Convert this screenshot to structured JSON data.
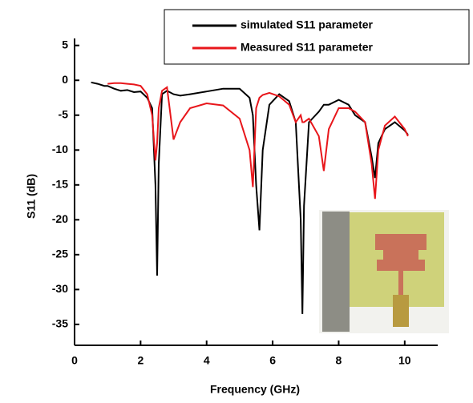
{
  "chart_data": {
    "type": "line",
    "x_label": "Frequency (GHz)",
    "y_label": "S11 (dB)",
    "x": [
      0.5,
      0.7,
      0.9,
      1.0,
      1.2,
      1.4,
      1.6,
      1.8,
      2.0,
      2.2,
      2.35,
      2.45,
      2.5,
      2.55,
      2.65,
      2.8,
      3.0,
      3.2,
      3.5,
      4.0,
      4.5,
      5.0,
      5.3,
      5.4,
      5.5,
      5.6,
      5.7,
      5.9,
      6.2,
      6.5,
      6.7,
      6.85,
      6.9,
      6.95,
      7.1,
      7.4,
      7.55,
      7.7,
      8.0,
      8.3,
      8.5,
      8.8,
      9.0,
      9.1,
      9.2,
      9.4,
      9.7,
      10.0,
      10.1
    ],
    "series": [
      {
        "name": "simulated S11 parameter",
        "color": "#000000",
        "values": [
          -0.3,
          -0.5,
          -0.8,
          -0.8,
          -1.2,
          -1.5,
          -1.4,
          -1.7,
          -1.6,
          -2.5,
          -4,
          -15,
          -28,
          -12,
          -2,
          -1.5,
          -2,
          -2.2,
          -2,
          -1.6,
          -1.2,
          -1.2,
          -2.5,
          -5,
          -15,
          -21.5,
          -10,
          -3.5,
          -2,
          -3,
          -6,
          -20,
          -33.5,
          -18,
          -6,
          -4.5,
          -3.5,
          -3.5,
          -2.8,
          -3.5,
          -5,
          -6,
          -11,
          -14,
          -9,
          -7,
          -6,
          -7.2,
          -7.8
        ]
      },
      {
        "name": "Measured S11 parameter",
        "color": "#e8161b",
        "values": [
          null,
          null,
          null,
          -0.5,
          -0.4,
          -0.4,
          -0.5,
          -0.6,
          -0.8,
          -2,
          -5,
          -11.5,
          -9,
          -4,
          -1.5,
          -1,
          -8.5,
          -6,
          -4,
          -3.3,
          -3.6,
          -5.5,
          -10,
          -15.3,
          -4,
          -2.5,
          -2.1,
          -1.8,
          -2.3,
          -3.5,
          -6,
          -5,
          -6,
          -6,
          -5.5,
          -8,
          -13,
          -7,
          -4,
          -4,
          -4.5,
          -6,
          -12,
          -17,
          -10,
          -6.5,
          -5.2,
          -7,
          -8
        ]
      }
    ],
    "xlim": [
      0,
      11
    ],
    "xticks": [
      0,
      2,
      4,
      6,
      8,
      10
    ],
    "ylim": [
      -38,
      6
    ],
    "yticks": [
      5,
      0,
      -5,
      -10,
      -15,
      -20,
      -25,
      -30,
      -35
    ],
    "legend": "upper right"
  }
}
